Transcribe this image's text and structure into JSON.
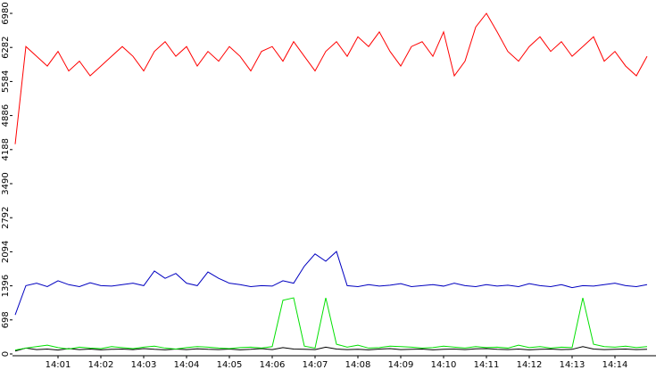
{
  "chart_data": {
    "type": "line",
    "categories": [
      null,
      null,
      null,
      null,
      "14:01",
      null,
      null,
      null,
      "14:02",
      null,
      null,
      null,
      "14:03",
      null,
      null,
      null,
      "14:04",
      null,
      null,
      null,
      "14:05",
      null,
      null,
      null,
      "14:06",
      null,
      null,
      null,
      "14:07",
      null,
      null,
      null,
      "14:08",
      null,
      null,
      null,
      "14:09",
      null,
      null,
      null,
      "14:10",
      null,
      null,
      null,
      "14:11",
      null,
      null,
      null,
      "14:12",
      null,
      null,
      null,
      "14:13",
      null,
      null,
      null,
      "14:14",
      null,
      null,
      null
    ],
    "ylim": [
      0,
      6980
    ],
    "yticks": [
      0,
      698,
      1396,
      2094,
      2792,
      3490,
      4188,
      4886,
      5584,
      6282,
      6980
    ],
    "series": [
      {
        "color": "#ff0000",
        "values": [
          4300,
          6300,
          6100,
          5900,
          6200,
          5800,
          6000,
          5700,
          5900,
          6100,
          6300,
          6100,
          5800,
          6200,
          6400,
          6100,
          6300,
          5900,
          6200,
          6000,
          6300,
          6100,
          5800,
          6200,
          6300,
          6000,
          6400,
          6100,
          5800,
          6200,
          6400,
          6100,
          6500,
          6300,
          6600,
          6200,
          5900,
          6300,
          6400,
          6100,
          6600,
          5700,
          6000,
          6700,
          6980,
          6600,
          6200,
          6000,
          6300,
          6500,
          6200,
          6400,
          6100,
          6300,
          6500,
          6000,
          6200,
          5900,
          5700,
          6100
        ]
      },
      {
        "color": "#0000c0",
        "values": [
          800,
          1400,
          1450,
          1380,
          1500,
          1420,
          1380,
          1460,
          1400,
          1390,
          1420,
          1450,
          1400,
          1700,
          1550,
          1650,
          1450,
          1400,
          1680,
          1550,
          1450,
          1420,
          1380,
          1400,
          1390,
          1500,
          1450,
          1800,
          2050,
          1900,
          2100,
          1400,
          1380,
          1420,
          1390,
          1410,
          1440,
          1380,
          1400,
          1420,
          1390,
          1450,
          1400,
          1380,
          1420,
          1390,
          1410,
          1380,
          1440,
          1400,
          1380,
          1420,
          1360,
          1400,
          1390,
          1420,
          1450,
          1400,
          1380,
          1420
        ]
      },
      {
        "color": "#00e000",
        "values": [
          80,
          120,
          150,
          180,
          130,
          100,
          140,
          120,
          110,
          150,
          130,
          110,
          140,
          160,
          120,
          100,
          130,
          150,
          140,
          120,
          110,
          130,
          140,
          120,
          150,
          1100,
          1150,
          160,
          120,
          1150,
          200,
          140,
          180,
          120,
          130,
          160,
          150,
          140,
          120,
          130,
          160,
          140,
          120,
          150,
          130,
          140,
          120,
          180,
          130,
          150,
          120,
          140,
          130,
          1150,
          200,
          150,
          140,
          160,
          130,
          150
        ]
      },
      {
        "color": "#000000",
        "values": [
          60,
          120,
          90,
          100,
          80,
          110,
          90,
          100,
          85,
          95,
          100,
          90,
          110,
          95,
          85,
          100,
          90,
          105,
          95,
          90,
          100,
          85,
          95,
          110,
          90,
          130,
          100,
          95,
          90,
          140,
          100,
          90,
          95,
          85,
          100,
          110,
          90,
          95,
          100,
          85,
          95,
          100,
          90,
          105,
          110,
          95,
          90,
          100,
          85,
          95,
          100,
          90,
          95,
          150,
          100,
          90,
          95,
          100,
          90,
          95
        ]
      }
    ]
  }
}
